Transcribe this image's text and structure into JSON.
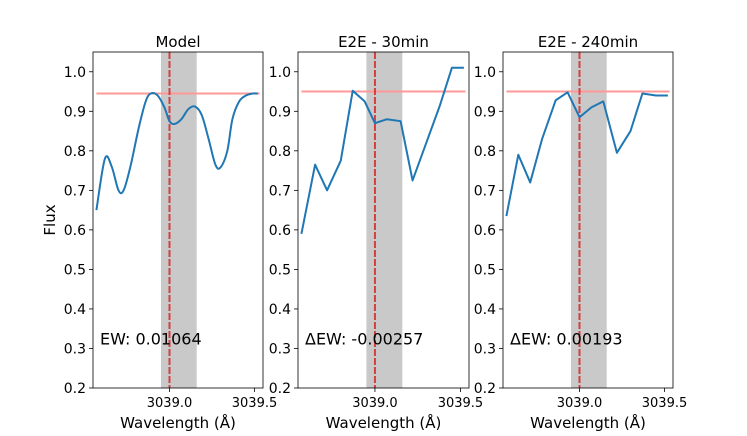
{
  "chart_data": [
    {
      "type": "line",
      "title": "Model",
      "xlabel": "Wavelength (Å)",
      "ylabel": "Flux",
      "xlim": [
        3038.55,
        3039.55
      ],
      "ylim": [
        0.2,
        1.05
      ],
      "xticks": [
        3039.0,
        3039.5
      ],
      "xtick_labels": [
        "3039.0",
        "3039.5"
      ],
      "yticks": [
        0.2,
        0.3,
        0.4,
        0.5,
        0.6,
        0.7,
        0.8,
        0.9,
        1.0
      ],
      "ytick_labels": [
        "0.2",
        "0.3",
        "0.4",
        "0.5",
        "0.6",
        "0.7",
        "0.8",
        "0.9",
        "1.0"
      ],
      "smooth": true,
      "x": [
        3038.57,
        3038.62,
        3038.66,
        3038.7,
        3038.73,
        3038.77,
        3038.82,
        3038.86,
        3038.89,
        3038.93,
        3038.97,
        3039.0,
        3039.03,
        3039.07,
        3039.11,
        3039.15,
        3039.19,
        3039.23,
        3039.27,
        3039.3,
        3039.34,
        3039.37,
        3039.41,
        3039.45,
        3039.49,
        3039.52
      ],
      "values": [
        0.65,
        0.78,
        0.76,
        0.7,
        0.7,
        0.76,
        0.86,
        0.925,
        0.945,
        0.94,
        0.91,
        0.875,
        0.868,
        0.88,
        0.905,
        0.912,
        0.89,
        0.83,
        0.765,
        0.758,
        0.8,
        0.88,
        0.925,
        0.94,
        0.945,
        0.945
      ],
      "continuum": 0.945,
      "line_center": 3039.0,
      "band": [
        3038.95,
        3039.16
      ],
      "annotation": "EW: 0.01064",
      "series_color": "#1f77b4",
      "continuum_color": "#ff9999",
      "center_color": "#d62728",
      "band_color": "#bbbbbb"
    },
    {
      "type": "line",
      "title": "E2E - 30min",
      "xlabel": "Wavelength (Å)",
      "ylabel": "",
      "xlim": [
        3038.55,
        3039.55
      ],
      "ylim": [
        0.2,
        1.05
      ],
      "xticks": [
        3039.0,
        3039.5
      ],
      "xtick_labels": [
        "3039.0",
        "3039.5"
      ],
      "yticks": [
        0.2,
        0.3,
        0.4,
        0.5,
        0.6,
        0.7,
        0.8,
        0.9,
        1.0
      ],
      "ytick_labels": [
        "0.2",
        "0.3",
        "0.4",
        "0.5",
        "0.6",
        "0.7",
        "0.8",
        "0.9",
        "1.0"
      ],
      "smooth": false,
      "x": [
        3038.57,
        3038.65,
        3038.72,
        3038.8,
        3038.87,
        3038.94,
        3039.0,
        3039.07,
        3039.15,
        3039.22,
        3039.3,
        3039.38,
        3039.45,
        3039.52
      ],
      "values": [
        0.59,
        0.765,
        0.7,
        0.775,
        0.952,
        0.925,
        0.87,
        0.88,
        0.875,
        0.725,
        0.82,
        0.915,
        1.01,
        1.01
      ],
      "continuum": 0.95,
      "line_center": 3039.0,
      "band": [
        3038.95,
        3039.16
      ],
      "annotation": "ΔEW: -0.00257",
      "series_color": "#1f77b4",
      "continuum_color": "#ff9999",
      "center_color": "#d62728",
      "band_color": "#bbbbbb"
    },
    {
      "type": "line",
      "title": "E2E - 240min",
      "xlabel": "Wavelength (Å)",
      "ylabel": "",
      "xlim": [
        3038.55,
        3039.55
      ],
      "ylim": [
        0.2,
        1.05
      ],
      "xticks": [
        3039.0,
        3039.5
      ],
      "xtick_labels": [
        "3039.0",
        "3039.5"
      ],
      "yticks": [
        0.2,
        0.3,
        0.4,
        0.5,
        0.6,
        0.7,
        0.8,
        0.9,
        1.0
      ],
      "ytick_labels": [
        "0.2",
        "0.3",
        "0.4",
        "0.5",
        "0.6",
        "0.7",
        "0.8",
        "0.9",
        "1.0"
      ],
      "smooth": false,
      "x": [
        3038.57,
        3038.64,
        3038.71,
        3038.78,
        3038.86,
        3038.93,
        3039.0,
        3039.07,
        3039.14,
        3039.22,
        3039.3,
        3039.37,
        3039.45,
        3039.52
      ],
      "values": [
        0.635,
        0.79,
        0.72,
        0.83,
        0.928,
        0.948,
        0.885,
        0.91,
        0.925,
        0.795,
        0.85,
        0.945,
        0.94,
        0.94
      ],
      "continuum": 0.95,
      "line_center": 3039.0,
      "band": [
        3038.95,
        3039.16
      ],
      "annotation": "ΔEW: 0.00193",
      "series_color": "#1f77b4",
      "continuum_color": "#ff9999",
      "center_color": "#d62728",
      "band_color": "#bbbbbb"
    }
  ]
}
